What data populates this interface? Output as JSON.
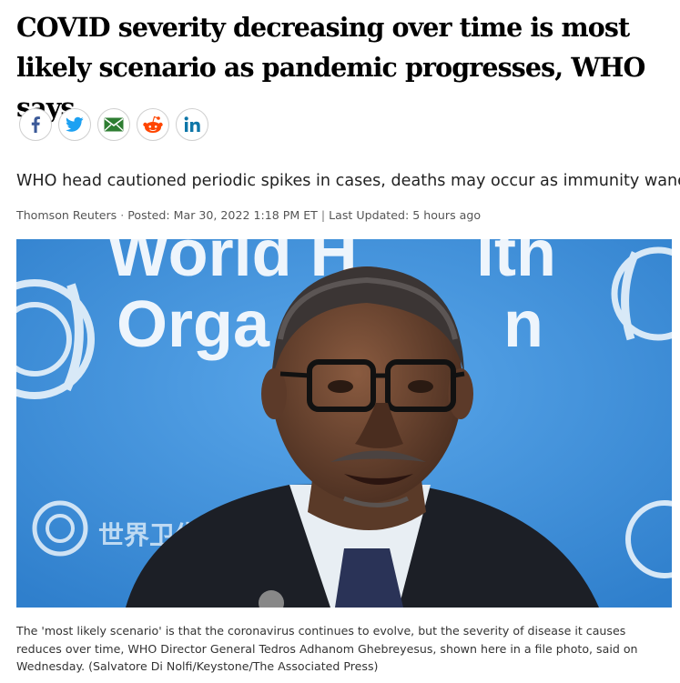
{
  "article": {
    "headline": "COVID severity decreasing over time is most likely scenario as pandemic progresses, WHO says",
    "deck": "WHO head cautioned periodic spikes in cases, deaths may occur as immunity wanes",
    "byline": {
      "source": "Thomson Reuters",
      "posted": "Posted: Mar 30, 2022 1:18 PM ET",
      "updated": "Last Updated: 5 hours ago"
    },
    "share": [
      {
        "name": "facebook",
        "icon": "facebook-icon",
        "color": "#3b5998"
      },
      {
        "name": "twitter",
        "icon": "twitter-icon",
        "color": "#1da1f2"
      },
      {
        "name": "email",
        "icon": "email-icon",
        "color": "#2e7d32"
      },
      {
        "name": "reddit",
        "icon": "reddit-icon",
        "color": "#ff4500"
      },
      {
        "name": "linkedin",
        "icon": "linkedin-icon",
        "color": "#0e76a8"
      }
    ],
    "photo": {
      "backdrop_text_line1": "World H",
      "backdrop_text_line1b": "lth",
      "backdrop_text_line2": "Orga",
      "backdrop_text_line2b": "n",
      "backdrop_cjk": "世界卫生"
    },
    "caption": "The 'most likely scenario' is that the coronavirus continues to evolve, but the severity of disease it causes reduces over time, WHO Director General Tedros Adhanom Ghebreyesus, shown here in a file photo, said on Wednesday. (Salvatore Di Nolfi/Keystone/The Associated Press)"
  }
}
